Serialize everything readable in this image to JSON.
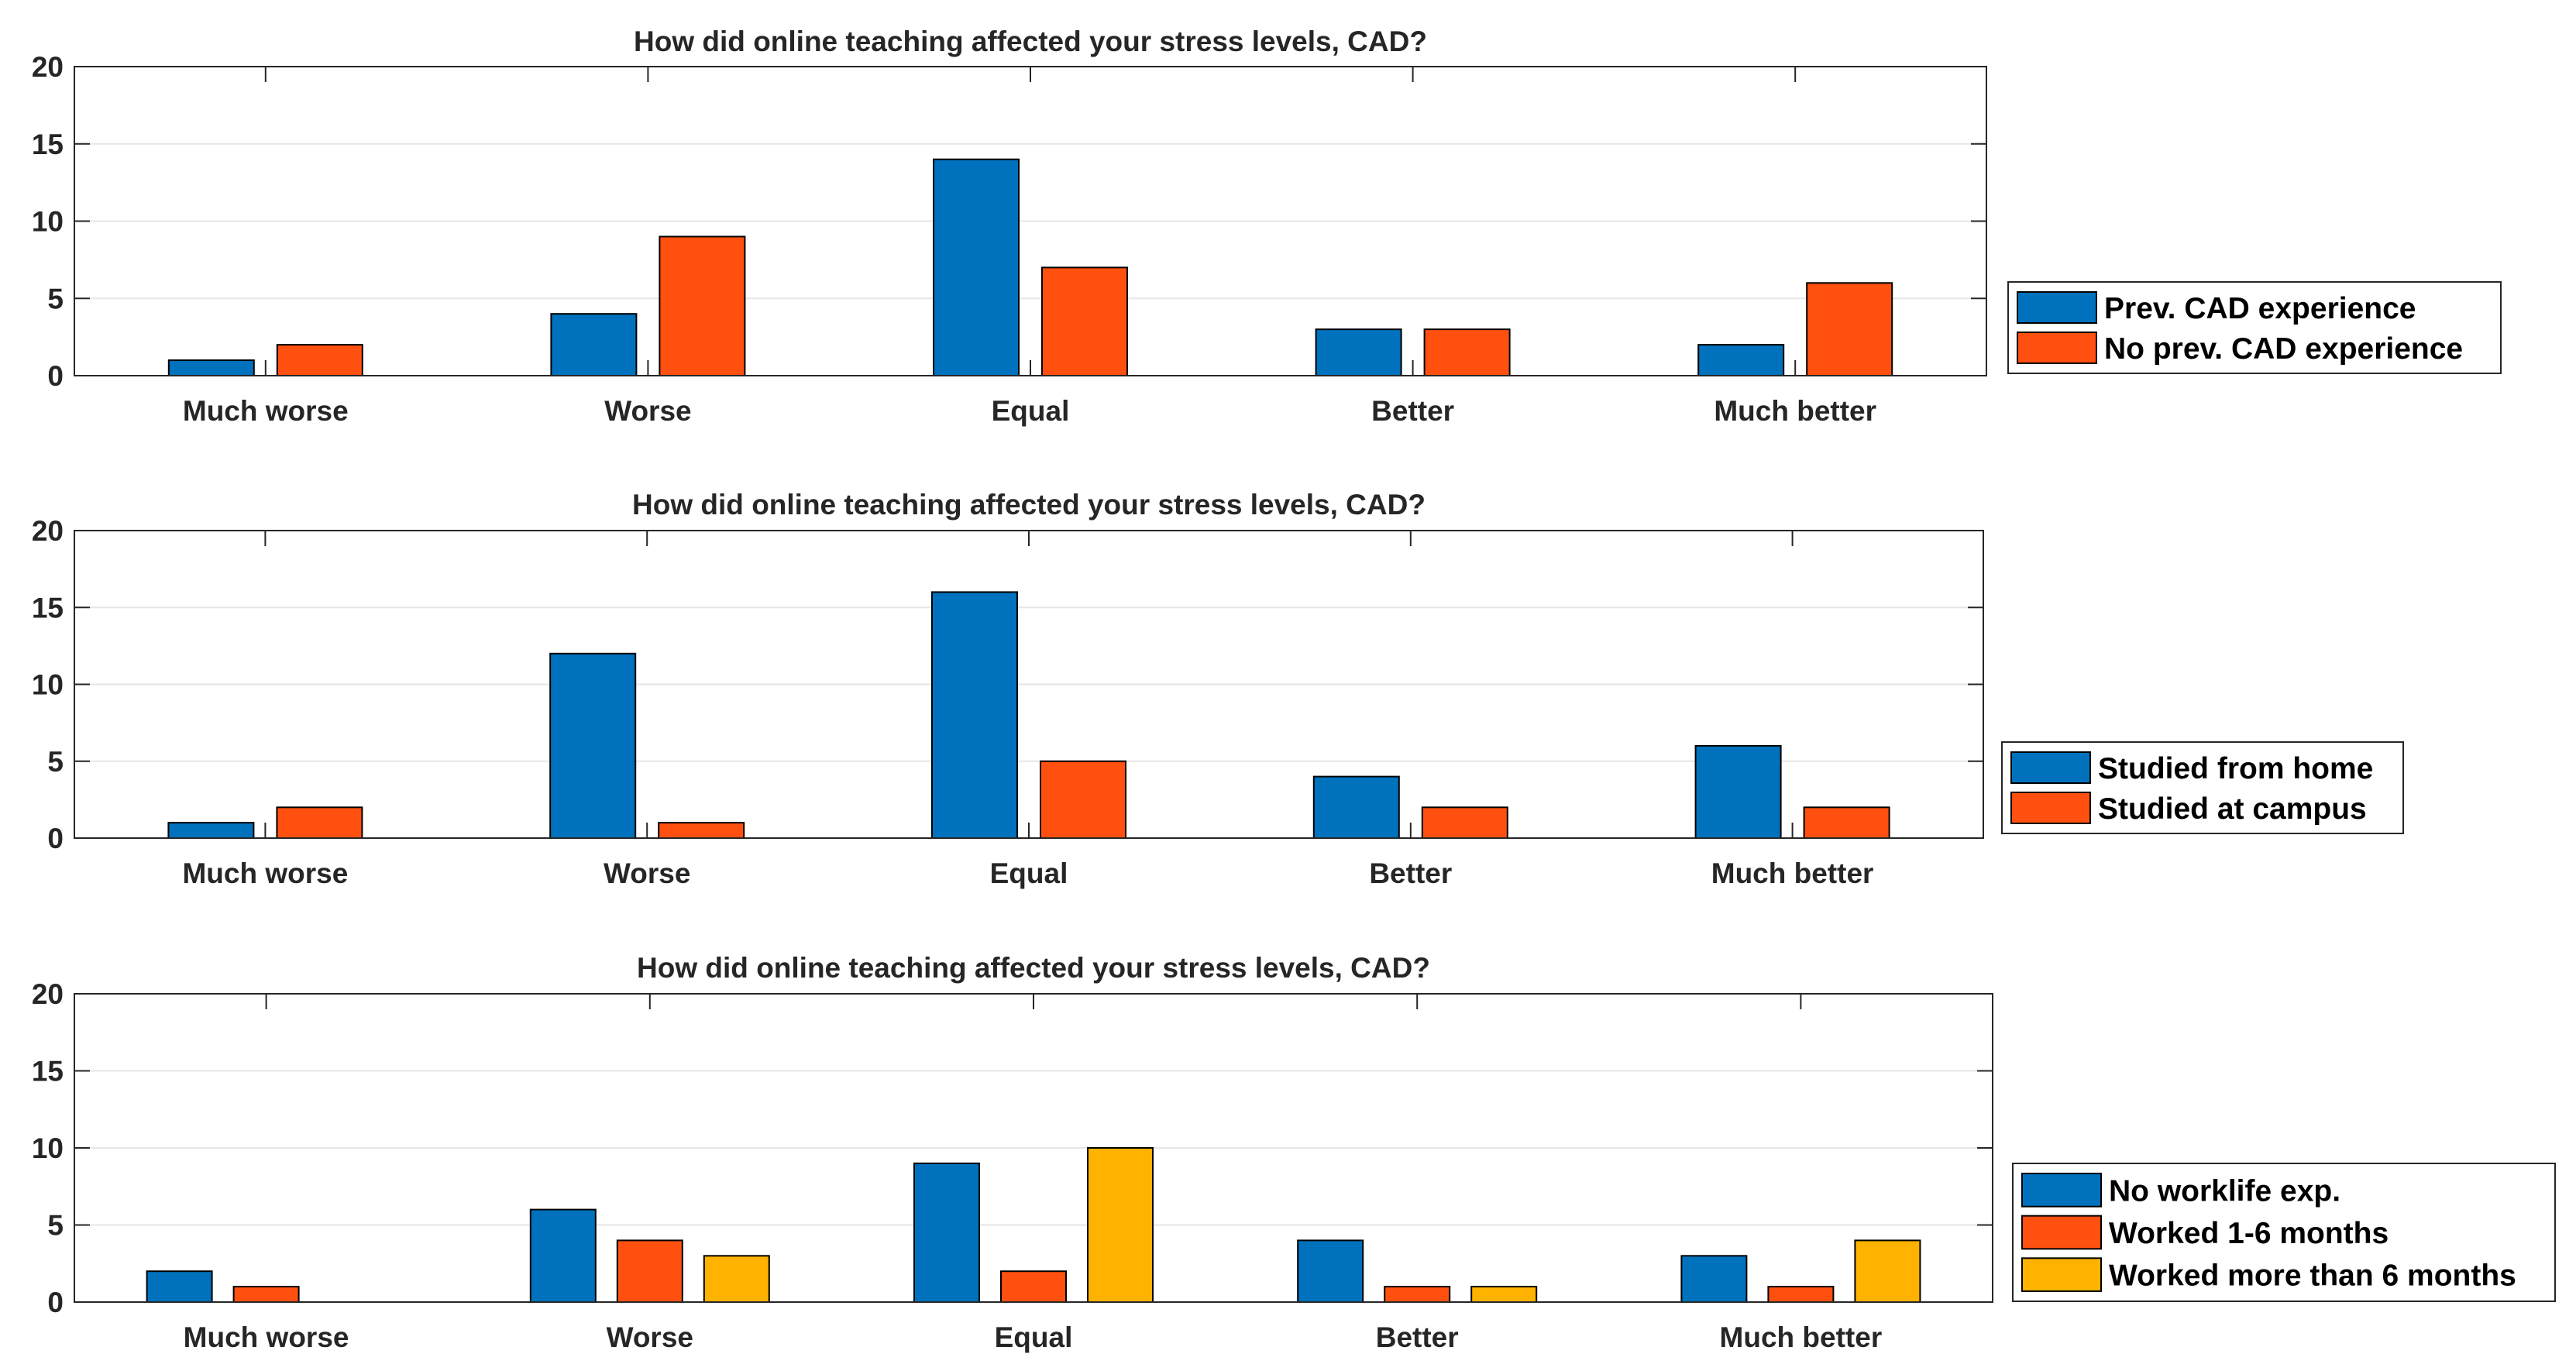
{
  "chart_data": [
    {
      "type": "bar",
      "title": "How did online teaching affected your stress levels, CAD?",
      "categories": [
        "Much worse",
        "Worse",
        "Equal",
        "Better",
        "Much better"
      ],
      "ylim": [
        0,
        20
      ],
      "yticks": [
        "0",
        "5",
        "10",
        "15",
        "20"
      ],
      "grid": true,
      "legend_position": "right",
      "series": [
        {
          "name": "Prev. CAD experience",
          "color": "#0072BD",
          "values": [
            1,
            4,
            14,
            3,
            2
          ]
        },
        {
          "name": "No prev. CAD experience",
          "color": "#FF5010",
          "values": [
            2,
            9,
            7,
            3,
            6
          ]
        }
      ]
    },
    {
      "type": "bar",
      "title": "How did online teaching affected your stress levels, CAD?",
      "categories": [
        "Much worse",
        "Worse",
        "Equal",
        "Better",
        "Much better"
      ],
      "ylim": [
        0,
        20
      ],
      "yticks": [
        "0",
        "5",
        "10",
        "15",
        "20"
      ],
      "grid": true,
      "legend_position": "right",
      "series": [
        {
          "name": "Studied from home",
          "color": "#0072BD",
          "values": [
            1,
            12,
            16,
            4,
            6
          ]
        },
        {
          "name": "Studied at campus",
          "color": "#FF5010",
          "values": [
            2,
            1,
            5,
            2,
            2
          ]
        }
      ]
    },
    {
      "type": "bar",
      "title": "How did online teaching affected your stress levels, CAD?",
      "categories": [
        "Much worse",
        "Worse",
        "Equal",
        "Better",
        "Much better"
      ],
      "ylim": [
        0,
        20
      ],
      "yticks": [
        "0",
        "5",
        "10",
        "15",
        "20"
      ],
      "grid": true,
      "legend_position": "right",
      "series": [
        {
          "name": "No worklife exp.",
          "color": "#0072BD",
          "values": [
            2,
            6,
            9,
            4,
            3
          ]
        },
        {
          "name": "Worked 1-6 months",
          "color": "#FF5010",
          "values": [
            1,
            4,
            2,
            1,
            1
          ]
        },
        {
          "name": "Worked more than 6 months",
          "color": "#FFB300",
          "values": [
            0,
            3,
            10,
            1,
            4
          ]
        }
      ]
    }
  ]
}
